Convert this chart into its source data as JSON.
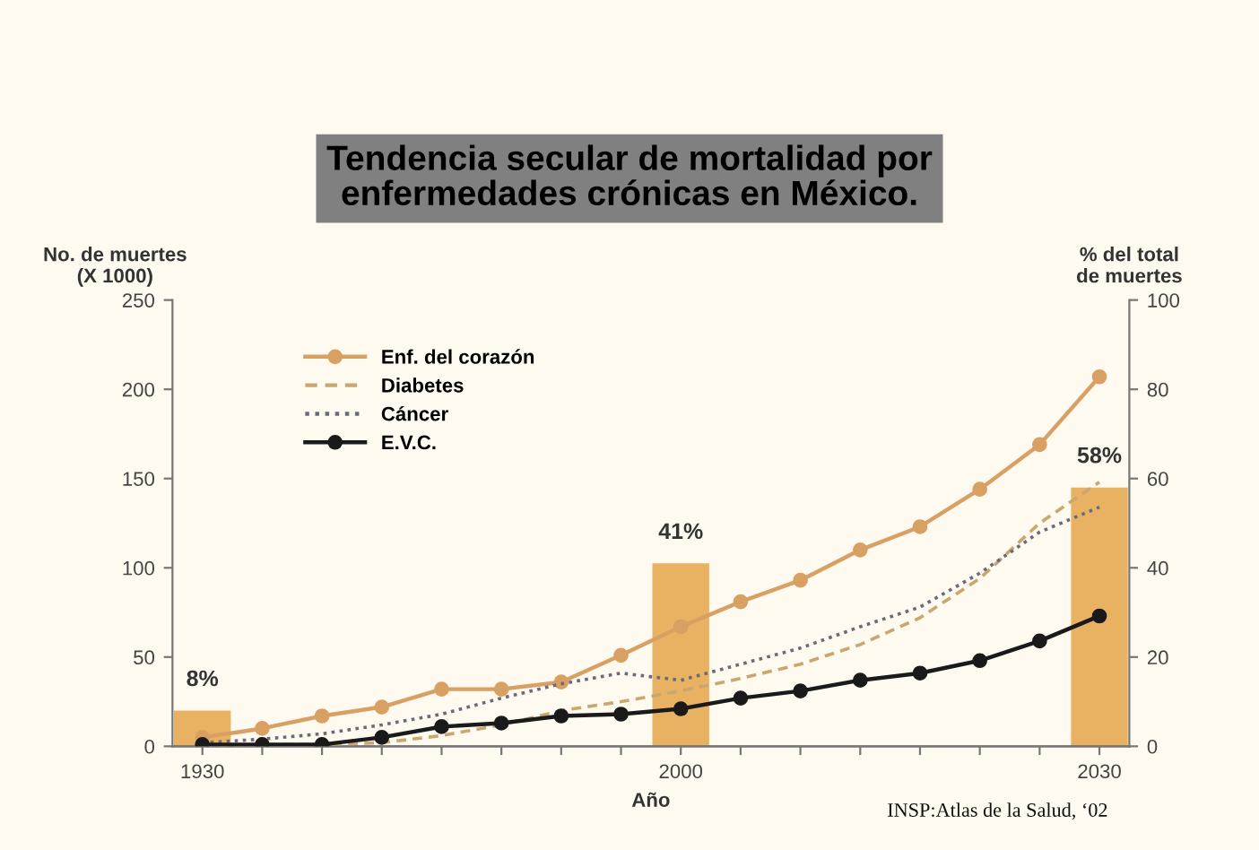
{
  "chart_data": {
    "type": "line",
    "title": "Tendencia secular de mortalidad por\nenfermedades crónicas en México.",
    "xlabel": "Año",
    "ylabel": "No. de muertes\n(X 1000)",
    "y2label": "% del total\nde muertes",
    "categories": [
      "1930",
      null,
      null,
      null,
      null,
      null,
      null,
      null,
      "2000",
      null,
      null,
      null,
      null,
      null,
      null,
      "2030"
    ],
    "series": [
      {
        "type": "bar",
        "axis": "y2",
        "color": "#e8b262",
        "values": [
          8,
          null,
          null,
          null,
          null,
          null,
          null,
          null,
          41,
          null,
          null,
          null,
          null,
          null,
          null,
          58
        ],
        "value_labels": [
          "8%",
          null,
          null,
          null,
          null,
          null,
          null,
          null,
          "41%",
          null,
          null,
          null,
          null,
          null,
          null,
          "58%"
        ]
      },
      {
        "name": "Enf. del corazón",
        "color": "#d9a064",
        "marker": "circle",
        "line_style": "solid",
        "values": [
          5,
          10,
          17,
          22,
          32,
          32,
          36,
          51,
          67,
          81,
          93,
          110,
          123,
          144,
          169,
          207
        ]
      },
      {
        "name": "Diabetes",
        "color": "#c8a870",
        "marker": "none",
        "line_style": "dashed",
        "values": [
          0,
          1,
          1,
          2,
          6,
          12,
          20,
          25,
          31,
          38,
          46,
          57,
          72,
          94,
          125,
          148
        ]
      },
      {
        "name": "Cáncer",
        "color": "#6a6a78",
        "marker": "none",
        "line_style": "dotted",
        "values": [
          2,
          4,
          7,
          12,
          18,
          27,
          35,
          41,
          37,
          46,
          55,
          67,
          78,
          97,
          120,
          134
        ]
      },
      {
        "name": "E.V.C.",
        "color": "#1a1a1a",
        "marker": "circle",
        "line_style": "solid",
        "values": [
          1,
          1,
          1,
          5,
          11,
          13,
          17,
          18,
          21,
          27,
          31,
          37,
          41,
          48,
          59,
          73
        ]
      }
    ],
    "ylim": [
      0,
      250
    ],
    "yticks": [
      0,
      50,
      100,
      150,
      200,
      250
    ],
    "y2lim": [
      0,
      100
    ],
    "y2ticks": [
      0,
      20,
      40,
      60,
      80,
      100
    ],
    "legend": "top left",
    "grid": false,
    "annotations": [
      "INSP:Atlas de la Salud, ‘02"
    ]
  }
}
